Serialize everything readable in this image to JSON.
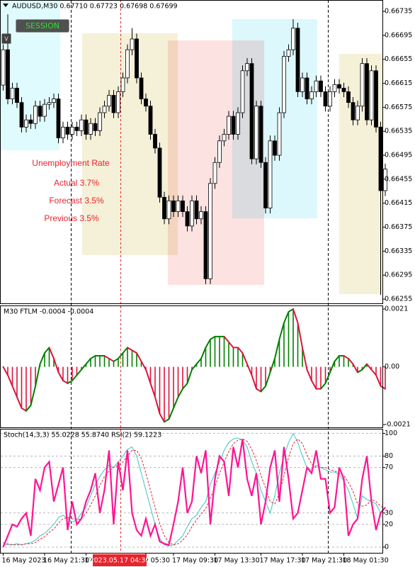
{
  "chart_data": [
    {
      "type": "candlestick",
      "title": "AUDUSD,M30 0.67710 0.67723 0.67698 0.67699",
      "buttons": [
        "SESSION",
        "V"
      ],
      "crosshair_label": "2023.05.17 04:30",
      "annotations": [
        "Unemployment Rate",
        "Actual 3.7%",
        "Forecast 3.5%",
        "Previous 3.5%"
      ],
      "up_color": "#ffffff",
      "down_color": "#000000",
      "grid": false,
      "ylim": [
        0.66248,
        0.66754
      ],
      "yticks": [
        0.66735,
        0.66695,
        0.66655,
        0.66615,
        0.66575,
        0.66535,
        0.66495,
        0.66455,
        0.66415,
        0.66375,
        0.66335,
        0.66295,
        0.66255
      ],
      "categories": [
        "16 May 2023",
        null,
        null,
        null,
        null,
        null,
        null,
        null,
        null,
        "16 May 21:30",
        null,
        null,
        null,
        null,
        null,
        null,
        null,
        null,
        "17",
        null,
        null,
        null,
        null,
        null,
        null,
        null,
        null,
        null,
        null,
        null,
        null,
        "y 05:30",
        null,
        null,
        null,
        null,
        null,
        "17 May 09:30",
        null,
        null,
        null,
        null,
        null,
        null,
        null,
        null,
        "17 May 13:30",
        null,
        null,
        null,
        null,
        null,
        null,
        null,
        null,
        null,
        "17 May 17:30",
        null,
        null,
        null,
        null,
        null,
        null,
        null,
        null,
        "17 May 21:30",
        null,
        null,
        null,
        null,
        null,
        null,
        null,
        null,
        "18 May 01:30",
        null,
        null,
        null,
        null,
        null,
        null,
        null,
        null,
        null
      ],
      "open": [
        0.66612,
        0.66671,
        0.66589,
        0.66607,
        0.66583,
        0.66542,
        0.66554,
        0.66548,
        0.66577,
        0.6656,
        0.6658,
        0.66583,
        0.66589,
        0.66524,
        0.66542,
        0.6653,
        0.66542,
        0.66536,
        0.66554,
        0.6653,
        0.66548,
        0.66536,
        0.66566,
        0.66577,
        0.66595,
        0.66566,
        0.66601,
        0.66624,
        0.66671,
        0.66689,
        0.66624,
        0.66589,
        0.66577,
        0.6653,
        0.66507,
        0.66425,
        0.66389,
        0.66419,
        0.66401,
        0.66419,
        0.66401,
        0.66377,
        0.66419,
        0.66389,
        0.66401,
        0.66289,
        0.66448,
        0.66483,
        0.66519,
        0.6653,
        0.6656,
        0.6653,
        0.66566,
        0.66636,
        0.66648,
        0.66489,
        0.66577,
        0.66483,
        0.66407,
        0.66519,
        0.66495,
        0.66566,
        0.6666,
        0.66671,
        0.66707,
        0.66601,
        0.66624,
        0.66589,
        0.66601,
        0.66619,
        0.66601,
        0.66577,
        0.66601,
        0.66613,
        0.66607,
        0.66601,
        0.66583,
        0.66554,
        0.66577,
        0.66648,
        0.66554,
        0.66636,
        0.66542,
        0.66436
      ],
      "high": [
        0.6668,
        0.6673,
        0.66616,
        0.66616,
        0.66592,
        0.66563,
        0.66563,
        0.66586,
        0.66586,
        0.66589,
        0.66592,
        0.66598,
        0.66598,
        0.66551,
        0.66551,
        0.66551,
        0.66551,
        0.66563,
        0.66563,
        0.66557,
        0.66557,
        0.66575,
        0.66586,
        0.66604,
        0.66604,
        0.6661,
        0.66633,
        0.6668,
        0.66707,
        0.66698,
        0.66633,
        0.66598,
        0.66586,
        0.66539,
        0.66516,
        0.66434,
        0.66428,
        0.66428,
        0.66428,
        0.66428,
        0.6641,
        0.66428,
        0.66428,
        0.6641,
        0.6641,
        0.66457,
        0.66492,
        0.66528,
        0.66539,
        0.66569,
        0.66569,
        0.66575,
        0.66645,
        0.66657,
        0.66657,
        0.66586,
        0.66586,
        0.66492,
        0.66528,
        0.66528,
        0.66575,
        0.66669,
        0.6668,
        0.66722,
        0.66716,
        0.66633,
        0.66633,
        0.6661,
        0.66628,
        0.66628,
        0.6661,
        0.6661,
        0.66622,
        0.66622,
        0.66616,
        0.6661,
        0.66592,
        0.66586,
        0.66657,
        0.66657,
        0.66645,
        0.66645,
        0.66551,
        0.66481
      ],
      "low": [
        0.66603,
        0.6658,
        0.6658,
        0.66574,
        0.66533,
        0.66533,
        0.66539,
        0.66539,
        0.66551,
        0.66551,
        0.66571,
        0.66574,
        0.66515,
        0.66515,
        0.66521,
        0.66521,
        0.66527,
        0.66527,
        0.66521,
        0.66521,
        0.66527,
        0.66527,
        0.66557,
        0.66568,
        0.66557,
        0.66557,
        0.66592,
        0.66615,
        0.66662,
        0.66615,
        0.6658,
        0.66568,
        0.66521,
        0.66498,
        0.66416,
        0.6638,
        0.6638,
        0.66392,
        0.66392,
        0.66392,
        0.66368,
        0.66368,
        0.6638,
        0.6638,
        0.6628,
        0.6628,
        0.66439,
        0.66474,
        0.6651,
        0.66521,
        0.66521,
        0.66521,
        0.66557,
        0.66627,
        0.6648,
        0.6648,
        0.66474,
        0.66398,
        0.66398,
        0.66486,
        0.66486,
        0.66557,
        0.66651,
        0.66662,
        0.66592,
        0.66592,
        0.6658,
        0.6658,
        0.66592,
        0.66592,
        0.66568,
        0.66568,
        0.66592,
        0.66598,
        0.66592,
        0.66574,
        0.66545,
        0.66545,
        0.66568,
        0.66545,
        0.66545,
        0.66533,
        0.66262,
        0.66427
      ],
      "close": [
        0.66671,
        0.66589,
        0.66607,
        0.66583,
        0.66542,
        0.66554,
        0.66548,
        0.66577,
        0.6656,
        0.6658,
        0.66583,
        0.66589,
        0.66524,
        0.66542,
        0.6653,
        0.66542,
        0.66536,
        0.66554,
        0.6653,
        0.66548,
        0.66536,
        0.66566,
        0.66577,
        0.66595,
        0.66566,
        0.66601,
        0.66624,
        0.66671,
        0.66689,
        0.66624,
        0.66589,
        0.66577,
        0.6653,
        0.66507,
        0.66425,
        0.66389,
        0.66419,
        0.66401,
        0.66419,
        0.66401,
        0.66377,
        0.66419,
        0.66389,
        0.66401,
        0.66289,
        0.66448,
        0.66483,
        0.66519,
        0.6653,
        0.6656,
        0.6653,
        0.66566,
        0.66636,
        0.66648,
        0.66489,
        0.66577,
        0.66483,
        0.66407,
        0.66519,
        0.66495,
        0.66566,
        0.6666,
        0.66671,
        0.66707,
        0.66601,
        0.66624,
        0.66589,
        0.66601,
        0.66619,
        0.66601,
        0.66577,
        0.66601,
        0.66613,
        0.66607,
        0.66601,
        0.66583,
        0.66554,
        0.66577,
        0.66648,
        0.66554,
        0.66636,
        0.66542,
        0.66436,
        0.66472
      ]
    },
    {
      "type": "bar",
      "title": "M30 FTLM -0.0004 -0.0004",
      "up_color": "#008000",
      "down_color": "#dc143c",
      "grid": false,
      "ylim": [
        -0.0022,
        0.00223
      ],
      "yticks": [
        0.0021,
        {
          "value": 0,
          "label": "0.00"
        },
        -0.0021
      ],
      "values": [
        0,
        -0.0003,
        -0.0007,
        -0.0011,
        -0.0015,
        -0.0016,
        -0.0014,
        -0.0007,
        0.0001,
        0.0005,
        0.0007,
        0.0003,
        -0.0002,
        -0.0005,
        -0.0006,
        -0.0005,
        -0.0003,
        -0.0001,
        0.0001,
        0.0003,
        0.0004,
        0.0004,
        0.0004,
        0.0003,
        0.0002,
        0.0003,
        0.0005,
        0.0007,
        0.0006,
        0.0005,
        0.0002,
        -0.0001,
        -0.0006,
        -0.0011,
        -0.0017,
        -0.002,
        -0.0019,
        -0.0015,
        -0.0011,
        -0.0008,
        -0.0006,
        -0.0001,
        0.0001,
        0.0003,
        0.0007,
        0.001,
        0.0011,
        0.0011,
        0.0011,
        0.0009,
        0.0007,
        0.0007,
        0.0005,
        0.0001,
        -0.0003,
        -0.0008,
        -0.0009,
        -0.0007,
        -0.0002,
        0.0003,
        0.001,
        0.0016,
        0.002,
        0.0021,
        0.0016,
        0.0007,
        -0.0001,
        -0.0005,
        -0.0008,
        -0.0008,
        -0.0006,
        -0.0002,
        0.0002,
        0.0004,
        0.0004,
        0.0003,
        0.0001,
        -0.0002,
        -0.0001,
        0.0001,
        -0.0001,
        -0.0003,
        -0.0007,
        -0.0008
      ]
    },
    {
      "type": "line",
      "title": "Stoch(14,3,3) 55.0228 55.8740 RSI(2) 59.1223",
      "grid": true,
      "ylim": [
        -5,
        104
      ],
      "yticks": [
        100,
        80,
        70,
        30,
        20,
        0
      ],
      "series": [
        {
          "color": "#3cc4c4",
          "line_style": "solid",
          "values": [
            3,
            2,
            2,
            3,
            2,
            3,
            4,
            6,
            10,
            12,
            16,
            20,
            26,
            28,
            25,
            22,
            24,
            30,
            35,
            45,
            55,
            62,
            68,
            72,
            70,
            75,
            80,
            86,
            88,
            80,
            65,
            50,
            35,
            20,
            8,
            2,
            1,
            2,
            6,
            10,
            18,
            25,
            28,
            35,
            40,
            55,
            65,
            75,
            85,
            92,
            95,
            96,
            94,
            88,
            75,
            65,
            50,
            40,
            30,
            45,
            65,
            80,
            92,
            100,
            92,
            80,
            70,
            68,
            72,
            70,
            68,
            66,
            66,
            64,
            58,
            50,
            38,
            25,
            45,
            42,
            40,
            38,
            30,
            35
          ]
        },
        {
          "color": "#e8242c",
          "line_style": "dashed",
          "values": [
            4,
            3,
            2,
            2,
            2,
            3,
            3,
            4,
            7,
            9,
            13,
            16,
            21,
            25,
            26,
            25,
            24,
            25,
            30,
            37,
            45,
            54,
            62,
            67,
            70,
            72,
            75,
            80,
            85,
            85,
            78,
            65,
            50,
            35,
            21,
            10,
            4,
            2,
            3,
            6,
            11,
            18,
            24,
            29,
            34,
            43,
            53,
            65,
            75,
            84,
            91,
            94,
            95,
            93,
            86,
            76,
            63,
            52,
            40,
            38,
            47,
            63,
            79,
            91,
            95,
            91,
            81,
            73,
            70,
            70,
            70,
            68,
            67,
            65,
            63,
            57,
            49,
            38,
            36,
            37,
            42,
            40,
            36,
            34
          ]
        },
        {
          "color": "#ff1493",
          "line_style": "bold",
          "values": [
            0,
            10,
            20,
            18,
            25,
            30,
            10,
            60,
            50,
            70,
            75,
            40,
            55,
            70,
            15,
            40,
            20,
            25,
            40,
            50,
            65,
            30,
            50,
            85,
            20,
            75,
            50,
            85,
            30,
            15,
            10,
            25,
            10,
            20,
            5,
            3,
            2,
            20,
            40,
            70,
            30,
            40,
            80,
            65,
            85,
            20,
            60,
            80,
            75,
            45,
            88,
            70,
            95,
            60,
            45,
            65,
            20,
            40,
            70,
            85,
            40,
            88,
            60,
            25,
            30,
            50,
            70,
            65,
            85,
            60,
            60,
            30,
            35,
            70,
            60,
            10,
            20,
            25,
            60,
            80,
            40,
            15,
            30,
            35
          ]
        }
      ]
    }
  ]
}
